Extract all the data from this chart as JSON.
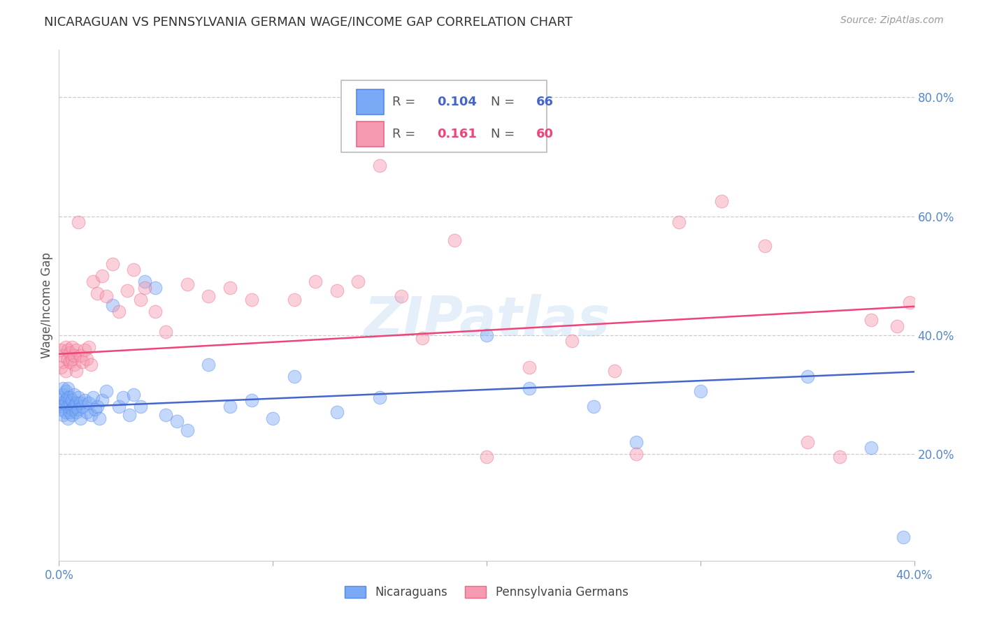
{
  "title": "NICARAGUAN VS PENNSYLVANIA GERMAN WAGE/INCOME GAP CORRELATION CHART",
  "source": "Source: ZipAtlas.com",
  "ylabel": "Wage/Income Gap",
  "right_ytick_vals": [
    0.2,
    0.4,
    0.6,
    0.8
  ],
  "right_ytick_labels": [
    "20.0%",
    "40.0%",
    "60.0%",
    "80.0%"
  ],
  "xmin": 0.0,
  "xmax": 0.4,
  "ymin": 0.02,
  "ymax": 0.88,
  "blue_color": "#7aaaf5",
  "pink_color": "#f59ab0",
  "blue_edge_color": "#5588ee",
  "pink_edge_color": "#ee6688",
  "blue_line_color": "#4466cc",
  "pink_line_color": "#ee4477",
  "blue_r": 0.104,
  "blue_n": 66,
  "pink_r": 0.161,
  "pink_n": 60,
  "blue_line_x": [
    0.0,
    0.4
  ],
  "blue_line_y": [
    0.278,
    0.338
  ],
  "pink_line_x": [
    0.0,
    0.4
  ],
  "pink_line_y": [
    0.368,
    0.448
  ],
  "legend_label_blue": "Nicaraguans",
  "legend_label_pink": "Pennsylvania Germans",
  "blue_points_x": [
    0.001,
    0.001,
    0.001,
    0.002,
    0.002,
    0.002,
    0.002,
    0.003,
    0.003,
    0.003,
    0.003,
    0.004,
    0.004,
    0.004,
    0.004,
    0.005,
    0.005,
    0.005,
    0.006,
    0.006,
    0.006,
    0.007,
    0.007,
    0.008,
    0.008,
    0.009,
    0.009,
    0.01,
    0.01,
    0.011,
    0.012,
    0.013,
    0.014,
    0.015,
    0.016,
    0.017,
    0.018,
    0.019,
    0.02,
    0.022,
    0.025,
    0.028,
    0.03,
    0.033,
    0.035,
    0.038,
    0.04,
    0.045,
    0.05,
    0.055,
    0.06,
    0.07,
    0.08,
    0.09,
    0.1,
    0.11,
    0.13,
    0.15,
    0.2,
    0.22,
    0.25,
    0.27,
    0.3,
    0.35,
    0.38,
    0.395
  ],
  "blue_points_y": [
    0.285,
    0.295,
    0.275,
    0.3,
    0.28,
    0.265,
    0.31,
    0.29,
    0.27,
    0.305,
    0.285,
    0.295,
    0.26,
    0.31,
    0.28,
    0.285,
    0.27,
    0.295,
    0.275,
    0.29,
    0.265,
    0.3,
    0.28,
    0.285,
    0.27,
    0.275,
    0.295,
    0.285,
    0.26,
    0.28,
    0.29,
    0.27,
    0.285,
    0.265,
    0.295,
    0.275,
    0.28,
    0.26,
    0.29,
    0.305,
    0.45,
    0.28,
    0.295,
    0.265,
    0.3,
    0.28,
    0.49,
    0.48,
    0.265,
    0.255,
    0.24,
    0.35,
    0.28,
    0.29,
    0.26,
    0.33,
    0.27,
    0.295,
    0.4,
    0.31,
    0.28,
    0.22,
    0.305,
    0.33,
    0.21,
    0.06
  ],
  "pink_points_x": [
    0.001,
    0.001,
    0.002,
    0.002,
    0.003,
    0.003,
    0.004,
    0.004,
    0.005,
    0.005,
    0.006,
    0.006,
    0.007,
    0.007,
    0.008,
    0.008,
    0.009,
    0.01,
    0.011,
    0.012,
    0.013,
    0.014,
    0.015,
    0.016,
    0.018,
    0.02,
    0.022,
    0.025,
    0.028,
    0.032,
    0.035,
    0.038,
    0.04,
    0.045,
    0.05,
    0.06,
    0.07,
    0.08,
    0.09,
    0.11,
    0.12,
    0.13,
    0.14,
    0.15,
    0.16,
    0.17,
    0.185,
    0.2,
    0.22,
    0.24,
    0.26,
    0.27,
    0.29,
    0.31,
    0.33,
    0.35,
    0.365,
    0.38,
    0.392,
    0.398
  ],
  "pink_points_y": [
    0.345,
    0.375,
    0.355,
    0.365,
    0.38,
    0.34,
    0.36,
    0.375,
    0.355,
    0.37,
    0.36,
    0.38,
    0.35,
    0.365,
    0.375,
    0.34,
    0.59,
    0.365,
    0.355,
    0.375,
    0.36,
    0.38,
    0.35,
    0.49,
    0.47,
    0.5,
    0.465,
    0.52,
    0.44,
    0.475,
    0.51,
    0.46,
    0.48,
    0.44,
    0.405,
    0.485,
    0.465,
    0.48,
    0.46,
    0.46,
    0.49,
    0.475,
    0.49,
    0.685,
    0.465,
    0.395,
    0.56,
    0.195,
    0.345,
    0.39,
    0.34,
    0.2,
    0.59,
    0.625,
    0.55,
    0.22,
    0.195,
    0.425,
    0.415,
    0.455
  ],
  "watermark": "ZIPatlas",
  "background_color": "#FFFFFF",
  "grid_color": "#CCCCCC",
  "marker_size": 180,
  "marker_alpha": 0.45
}
